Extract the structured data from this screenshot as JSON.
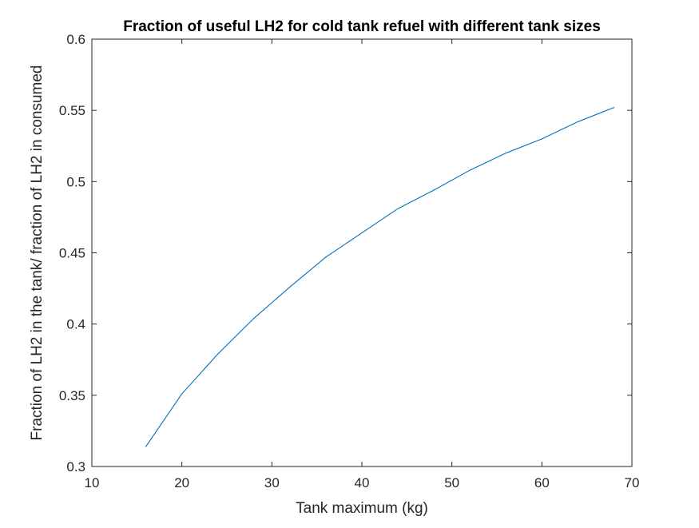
{
  "chart_data": {
    "type": "line",
    "title": "Fraction of useful LH2 for cold tank refuel with different tank sizes",
    "xlabel": "Tank maximum (kg)",
    "ylabel": "Fraction of LH2 in the tank/ fraction of LH2 in consumed",
    "xlim": [
      10,
      70
    ],
    "ylim": [
      0.3,
      0.6
    ],
    "xticks": [
      "10",
      "20",
      "30",
      "40",
      "50",
      "60",
      "70"
    ],
    "yticks": [
      "0.3",
      "0.35",
      "0.4",
      "0.45",
      "0.5",
      "0.55",
      "0.6"
    ],
    "grid": false,
    "legend": "none",
    "series": [
      {
        "color": "#0072BD",
        "x": [
          16,
          20,
          24,
          28,
          32,
          36,
          40,
          44,
          48,
          52,
          56,
          60,
          64,
          68
        ],
        "y": [
          0.314,
          0.351,
          0.379,
          0.404,
          0.426,
          0.447,
          0.464,
          0.481,
          0.494,
          0.508,
          0.52,
          0.53,
          0.542,
          0.552
        ]
      }
    ]
  }
}
